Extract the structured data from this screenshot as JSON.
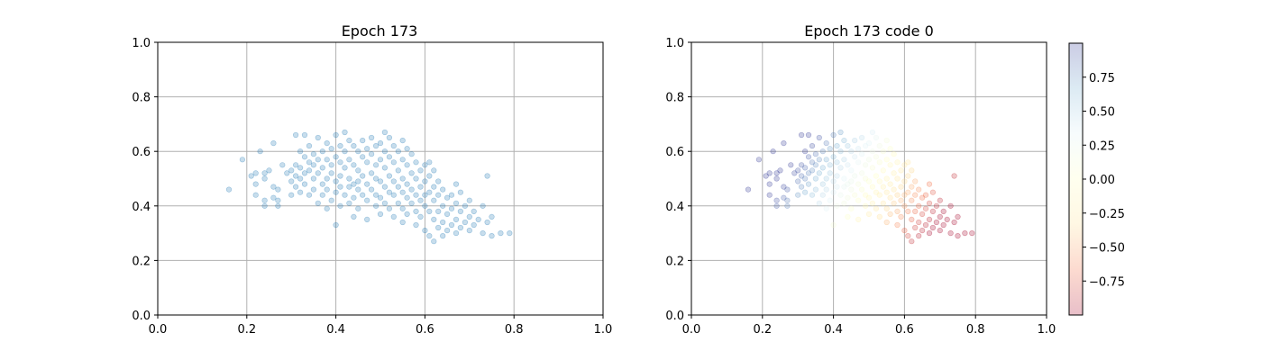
{
  "chart_data": [
    {
      "type": "scatter",
      "title": "Epoch 173",
      "xlabel": "",
      "ylabel": "",
      "xlim": [
        0.0,
        1.0
      ],
      "ylim": [
        0.0,
        1.0
      ],
      "xticks": [
        "0.0",
        "0.2",
        "0.4",
        "0.6",
        "0.8",
        "1.0"
      ],
      "yticks": [
        "0.0",
        "0.2",
        "0.4",
        "0.6",
        "0.8",
        "1.0"
      ],
      "grid": true,
      "point_color": "#1f77b4",
      "point_alpha": 0.25,
      "points": [
        [
          0.16,
          0.46
        ],
        [
          0.19,
          0.57
        ],
        [
          0.21,
          0.51
        ],
        [
          0.22,
          0.52
        ],
        [
          0.22,
          0.48
        ],
        [
          0.22,
          0.44
        ],
        [
          0.23,
          0.6
        ],
        [
          0.24,
          0.52
        ],
        [
          0.24,
          0.5
        ],
        [
          0.24,
          0.42
        ],
        [
          0.24,
          0.4
        ],
        [
          0.25,
          0.53
        ],
        [
          0.26,
          0.63
        ],
        [
          0.26,
          0.47
        ],
        [
          0.26,
          0.43
        ],
        [
          0.27,
          0.46
        ],
        [
          0.27,
          0.42
        ],
        [
          0.27,
          0.4
        ],
        [
          0.28,
          0.55
        ],
        [
          0.29,
          0.52
        ],
        [
          0.3,
          0.53
        ],
        [
          0.3,
          0.49
        ],
        [
          0.3,
          0.44
        ],
        [
          0.31,
          0.66
        ],
        [
          0.31,
          0.55
        ],
        [
          0.31,
          0.51
        ],
        [
          0.31,
          0.47
        ],
        [
          0.32,
          0.6
        ],
        [
          0.32,
          0.54
        ],
        [
          0.32,
          0.5
        ],
        [
          0.32,
          0.45
        ],
        [
          0.33,
          0.66
        ],
        [
          0.33,
          0.58
        ],
        [
          0.33,
          0.52
        ],
        [
          0.33,
          0.48
        ],
        [
          0.34,
          0.62
        ],
        [
          0.34,
          0.56
        ],
        [
          0.34,
          0.53
        ],
        [
          0.34,
          0.44
        ],
        [
          0.35,
          0.59
        ],
        [
          0.35,
          0.55
        ],
        [
          0.35,
          0.5
        ],
        [
          0.35,
          0.46
        ],
        [
          0.36,
          0.65
        ],
        [
          0.36,
          0.57
        ],
        [
          0.36,
          0.52
        ],
        [
          0.36,
          0.41
        ],
        [
          0.37,
          0.6
        ],
        [
          0.37,
          0.54
        ],
        [
          0.37,
          0.48
        ],
        [
          0.37,
          0.44
        ],
        [
          0.38,
          0.63
        ],
        [
          0.38,
          0.57
        ],
        [
          0.38,
          0.5
        ],
        [
          0.38,
          0.46
        ],
        [
          0.38,
          0.39
        ],
        [
          0.39,
          0.61
        ],
        [
          0.39,
          0.55
        ],
        [
          0.39,
          0.52
        ],
        [
          0.39,
          0.42
        ],
        [
          0.4,
          0.66
        ],
        [
          0.4,
          0.58
        ],
        [
          0.4,
          0.49
        ],
        [
          0.4,
          0.45
        ],
        [
          0.4,
          0.33
        ],
        [
          0.41,
          0.62
        ],
        [
          0.41,
          0.56
        ],
        [
          0.41,
          0.51
        ],
        [
          0.41,
          0.47
        ],
        [
          0.41,
          0.4
        ],
        [
          0.42,
          0.67
        ],
        [
          0.42,
          0.6
        ],
        [
          0.42,
          0.54
        ],
        [
          0.42,
          0.44
        ],
        [
          0.43,
          0.64
        ],
        [
          0.43,
          0.57
        ],
        [
          0.43,
          0.5
        ],
        [
          0.43,
          0.47
        ],
        [
          0.43,
          0.41
        ],
        [
          0.44,
          0.62
        ],
        [
          0.44,
          0.55
        ],
        [
          0.44,
          0.48
        ],
        [
          0.44,
          0.43
        ],
        [
          0.44,
          0.36
        ],
        [
          0.45,
          0.6
        ],
        [
          0.45,
          0.53
        ],
        [
          0.45,
          0.49
        ],
        [
          0.45,
          0.46
        ],
        [
          0.45,
          0.39
        ],
        [
          0.46,
          0.64
        ],
        [
          0.46,
          0.58
        ],
        [
          0.46,
          0.51
        ],
        [
          0.46,
          0.44
        ],
        [
          0.47,
          0.61
        ],
        [
          0.47,
          0.56
        ],
        [
          0.47,
          0.48
        ],
        [
          0.47,
          0.42
        ],
        [
          0.47,
          0.35
        ],
        [
          0.48,
          0.65
        ],
        [
          0.48,
          0.59
        ],
        [
          0.48,
          0.52
        ],
        [
          0.48,
          0.46
        ],
        [
          0.49,
          0.62
        ],
        [
          0.49,
          0.55
        ],
        [
          0.49,
          0.5
        ],
        [
          0.49,
          0.44
        ],
        [
          0.49,
          0.4
        ],
        [
          0.5,
          0.63
        ],
        [
          0.5,
          0.57
        ],
        [
          0.5,
          0.49
        ],
        [
          0.5,
          0.43
        ],
        [
          0.5,
          0.37
        ],
        [
          0.51,
          0.67
        ],
        [
          0.51,
          0.6
        ],
        [
          0.51,
          0.54
        ],
        [
          0.51,
          0.47
        ],
        [
          0.51,
          0.41
        ],
        [
          0.52,
          0.65
        ],
        [
          0.52,
          0.58
        ],
        [
          0.52,
          0.51
        ],
        [
          0.52,
          0.45
        ],
        [
          0.52,
          0.39
        ],
        [
          0.53,
          0.62
        ],
        [
          0.53,
          0.56
        ],
        [
          0.53,
          0.49
        ],
        [
          0.53,
          0.44
        ],
        [
          0.53,
          0.36
        ],
        [
          0.54,
          0.6
        ],
        [
          0.54,
          0.53
        ],
        [
          0.54,
          0.47
        ],
        [
          0.54,
          0.41
        ],
        [
          0.55,
          0.64
        ],
        [
          0.55,
          0.57
        ],
        [
          0.55,
          0.5
        ],
        [
          0.55,
          0.45
        ],
        [
          0.55,
          0.39
        ],
        [
          0.55,
          0.34
        ],
        [
          0.56,
          0.61
        ],
        [
          0.56,
          0.55
        ],
        [
          0.56,
          0.48
        ],
        [
          0.56,
          0.43
        ],
        [
          0.56,
          0.37
        ],
        [
          0.57,
          0.59
        ],
        [
          0.57,
          0.52
        ],
        [
          0.57,
          0.46
        ],
        [
          0.57,
          0.41
        ],
        [
          0.58,
          0.56
        ],
        [
          0.58,
          0.5
        ],
        [
          0.58,
          0.44
        ],
        [
          0.58,
          0.38
        ],
        [
          0.58,
          0.33
        ],
        [
          0.59,
          0.53
        ],
        [
          0.59,
          0.47
        ],
        [
          0.59,
          0.42
        ],
        [
          0.59,
          0.36
        ],
        [
          0.6,
          0.55
        ],
        [
          0.6,
          0.49
        ],
        [
          0.6,
          0.44
        ],
        [
          0.6,
          0.4
        ],
        [
          0.6,
          0.31
        ],
        [
          0.61,
          0.56
        ],
        [
          0.61,
          0.51
        ],
        [
          0.61,
          0.45
        ],
        [
          0.61,
          0.38
        ],
        [
          0.61,
          0.29
        ],
        [
          0.62,
          0.53
        ],
        [
          0.62,
          0.47
        ],
        [
          0.62,
          0.42
        ],
        [
          0.62,
          0.35
        ],
        [
          0.62,
          0.27
        ],
        [
          0.63,
          0.49
        ],
        [
          0.63,
          0.44
        ],
        [
          0.63,
          0.38
        ],
        [
          0.63,
          0.32
        ],
        [
          0.64,
          0.46
        ],
        [
          0.64,
          0.4
        ],
        [
          0.64,
          0.34
        ],
        [
          0.64,
          0.29
        ],
        [
          0.65,
          0.43
        ],
        [
          0.65,
          0.37
        ],
        [
          0.65,
          0.31
        ],
        [
          0.66,
          0.44
        ],
        [
          0.66,
          0.39
        ],
        [
          0.66,
          0.33
        ],
        [
          0.67,
          0.48
        ],
        [
          0.67,
          0.41
        ],
        [
          0.67,
          0.35
        ],
        [
          0.67,
          0.3
        ],
        [
          0.68,
          0.45
        ],
        [
          0.68,
          0.38
        ],
        [
          0.68,
          0.32
        ],
        [
          0.69,
          0.4
        ],
        [
          0.69,
          0.34
        ],
        [
          0.7,
          0.42
        ],
        [
          0.7,
          0.36
        ],
        [
          0.7,
          0.31
        ],
        [
          0.71,
          0.38
        ],
        [
          0.71,
          0.33
        ],
        [
          0.72,
          0.35
        ],
        [
          0.73,
          0.4
        ],
        [
          0.73,
          0.3
        ],
        [
          0.74,
          0.51
        ],
        [
          0.74,
          0.34
        ],
        [
          0.75,
          0.36
        ],
        [
          0.75,
          0.29
        ],
        [
          0.77,
          0.3
        ],
        [
          0.79,
          0.3
        ]
      ]
    },
    {
      "type": "scatter",
      "title": "Epoch 173 code 0",
      "xlabel": "",
      "ylabel": "",
      "xlim": [
        0.0,
        1.0
      ],
      "ylim": [
        0.0,
        1.0
      ],
      "xticks": [
        "0.0",
        "0.2",
        "0.4",
        "0.6",
        "0.8",
        "1.0"
      ],
      "yticks": [
        "0.0",
        "0.2",
        "0.4",
        "0.6",
        "0.8",
        "1.0"
      ],
      "grid": true,
      "point_alpha": 0.25,
      "colormap": "RdYlBu",
      "colormap_stops": [
        "#a50026",
        "#f46d43",
        "#fee090",
        "#ffffbf",
        "#e0f3f8",
        "#74add1",
        "#313695"
      ],
      "color_values_note": "Point colour encodes the code-0 value from each point's x-position trend: low x -> positive (blue), high x -> negative (red).",
      "colorbar": {
        "range": [
          -1.0,
          1.0
        ],
        "ticks": [
          "0.75",
          "0.50",
          "0.25",
          "0.00",
          "−0.25",
          "−0.50",
          "−0.75"
        ],
        "tick_values": [
          0.75,
          0.5,
          0.25,
          0.0,
          -0.25,
          -0.5,
          -0.75
        ]
      }
    }
  ]
}
